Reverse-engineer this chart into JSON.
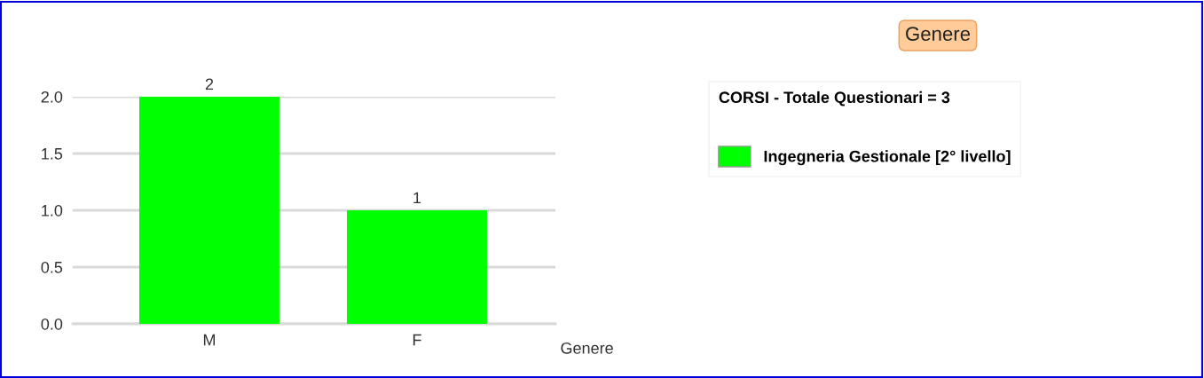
{
  "chart_data": {
    "type": "bar",
    "title": "Genere",
    "xlabel": "Genere",
    "legend_title": "CORSI - Totale Questionari = 3",
    "categories": [
      "M",
      "F"
    ],
    "series": [
      {
        "name": "Ingegneria Gestionale [2° livello]",
        "color": "#00ff00",
        "values": [
          2,
          1
        ]
      }
    ],
    "ylim": [
      0,
      2
    ],
    "yticks": [
      {
        "value": 0,
        "label": "0.0"
      },
      {
        "value": 0.5,
        "label": "0.5"
      },
      {
        "value": 1,
        "label": "1.0"
      },
      {
        "value": 1.5,
        "label": "1.5"
      },
      {
        "value": 2,
        "label": "2.0"
      }
    ],
    "grid": "y",
    "legend": "right",
    "data_labels": true
  }
}
